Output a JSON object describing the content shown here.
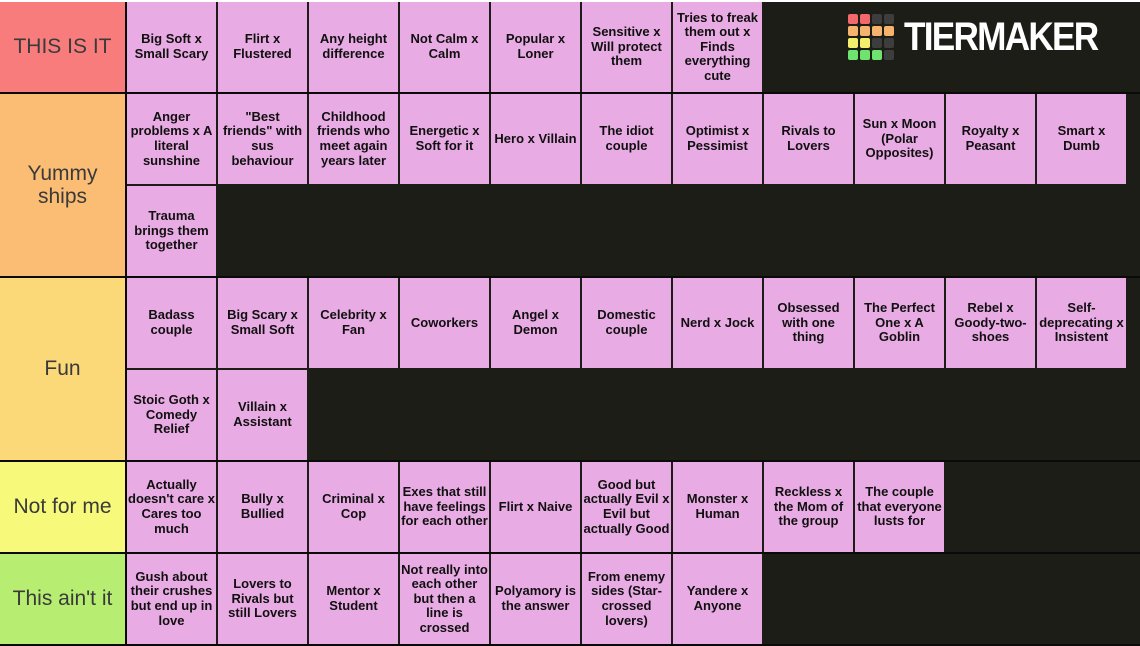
{
  "header": {
    "logo_text": "TIERMAKER",
    "logo_grid": [
      "#f2686b",
      "#f2686b",
      "#3d3d3d",
      "#3d3d3d",
      "#f6b36e",
      "#f6b36e",
      "#f6b36e",
      "#f6b36e",
      "#f3ef6d",
      "#f3ef6d",
      "#3d3d3d",
      "#3d3d3d",
      "#6fe36f",
      "#6fe36f",
      "#6fe36f",
      "#3d3d3d"
    ]
  },
  "colors": {
    "background": "#1d1d18",
    "grid_line": "#0a0a0a",
    "item_bg": "#e9abe4",
    "item_text": "#101010",
    "label_text": "#3a3a3a",
    "top_line": "#ffffff",
    "logo_text_color": "#ffffff"
  },
  "tiers": [
    {
      "label": "THIS IS IT",
      "color": "#f87c7c",
      "items": [
        "Big Soft x Small Scary",
        "Flirt x Flustered",
        "Any height difference",
        "Not Calm x Calm",
        "Popular x Loner",
        "Sensitive x Will protect them",
        "Tries to freak them out x Finds everything cute"
      ]
    },
    {
      "label": "Yummy ships",
      "color": "#fbbd74",
      "items": [
        "Anger problems x A literal sunshine",
        "\"Best friends\" with sus behaviour",
        "Childhood friends who meet again years later",
        "Energetic x Soft for it",
        "Hero x Villain",
        "The idiot couple",
        "Optimist x Pessimist",
        "Rivals to Lovers",
        "Sun x Moon (Polar Opposites)",
        "Royalty x Peasant",
        "Smart x Dumb",
        "Trauma brings them together"
      ]
    },
    {
      "label": "Fun",
      "color": "#fbd978",
      "items": [
        "Badass couple",
        "Big Scary x Small Soft",
        "Celebrity x Fan",
        "Coworkers",
        "Angel x Demon",
        "Domestic couple",
        "Nerd x Jock",
        "Obsessed with one thing",
        "The Perfect One x A Goblin",
        "Rebel x Goody-two-shoes",
        "Self-deprecating x Insistent",
        "Stoic Goth x Comedy Relief",
        "Villain x Assistant"
      ]
    },
    {
      "label": "Not for me",
      "color": "#f7f97b",
      "items": [
        "Actually doesn't care x Cares too much",
        "Bully x Bullied",
        "Criminal x Cop",
        "Exes that still have feelings for each other",
        "Flirt x Naive",
        "Good but actually Evil x Evil but actually Good",
        "Monster x Human",
        "Reckless x the Mom of the group",
        "The couple that everyone lusts for"
      ]
    },
    {
      "label": "This ain't it",
      "color": "#b7ee72",
      "items": [
        "Gush about their crushes but end up in love",
        "Lovers to Rivals but still Lovers",
        "Mentor x Student",
        "Not really into each other but then a line is crossed",
        "Polyamory is the answer",
        "From enemy sides (Star-crossed lovers)",
        "Yandere x Anyone"
      ]
    }
  ]
}
